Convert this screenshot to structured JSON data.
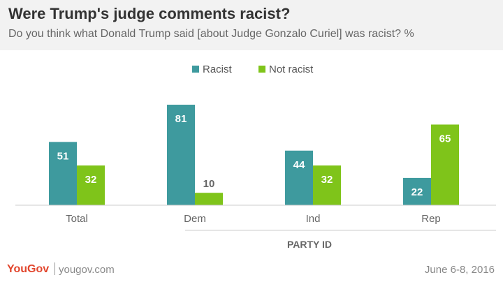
{
  "title": "Were Trump's judge comments racist?",
  "subtitle": "Do you think what Donald Trump said [about Judge Gonzalo Curiel] was racist? %",
  "chart_data": {
    "type": "bar",
    "categories": [
      "Total",
      "Dem",
      "Ind",
      "Rep"
    ],
    "series": [
      {
        "name": "Racist",
        "values": [
          51,
          81,
          44,
          22
        ],
        "color": "#3e9a9e"
      },
      {
        "name": "Not racist",
        "values": [
          32,
          10,
          32,
          65
        ],
        "color": "#7fc41a"
      }
    ],
    "group_label": "PARTY ID",
    "ylim": [
      0,
      81
    ],
    "grid": false,
    "legend_position": "top-center"
  },
  "footer": {
    "brand": "YouGov",
    "site": "yougov.com",
    "date": "June 6-8, 2016"
  }
}
